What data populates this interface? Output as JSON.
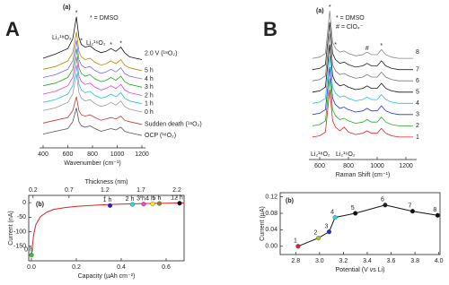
{
  "panel_labels": [
    "A",
    "B"
  ],
  "chart_data": [
    {
      "type": "spectra",
      "xlabel": "Wavenumber (cm⁻¹)",
      "xlim": [
        400,
        1200
      ],
      "ylim": [
        0,
        10.2
      ],
      "xticks": [
        400,
        600,
        800,
        1000,
        1200
      ],
      "x": [
        400,
        500,
        600,
        640,
        670,
        690,
        710,
        740,
        780,
        820,
        870,
        910,
        950,
        990,
        1030,
        1060,
        1100,
        1150,
        1200
      ],
      "annotations": [
        {
          "text": "(a)"
        },
        {
          "text": "* = DMSO"
        },
        {
          "text": "Li₂¹⁸O₂"
        },
        {
          "text": "Li₂¹⁶O₂"
        }
      ],
      "peak_markers": [
        {
          "text": "*",
          "x": 670
        },
        {
          "text": "*",
          "x": 710
        },
        {
          "text": "*",
          "x": 950
        },
        {
          "text": "*",
          "x": 1030
        }
      ],
      "series": [
        {
          "name": "2.0 V (¹⁸O₂)",
          "color": "#111111",
          "values": [
            6.5,
            6.8,
            7.2,
            7.9,
            9.5,
            8.0,
            7.5,
            7.3,
            7.4,
            7.1,
            6.9,
            7.0,
            7.2,
            7.0,
            7.3,
            6.9,
            6.6,
            6.5,
            6.4
          ]
        },
        {
          "name": "5 h",
          "color": "#b8860b",
          "values": [
            5.7,
            5.9,
            6.3,
            6.9,
            8.4,
            7.0,
            6.6,
            6.4,
            6.5,
            6.2,
            6.0,
            6.1,
            6.3,
            6.1,
            6.4,
            6.0,
            5.8,
            5.7,
            5.6
          ]
        },
        {
          "name": "4 h",
          "color": "#7b68ee",
          "values": [
            5.1,
            5.3,
            5.7,
            6.3,
            7.8,
            6.4,
            6.0,
            5.8,
            5.9,
            5.6,
            5.4,
            5.5,
            5.7,
            5.5,
            5.8,
            5.4,
            5.2,
            5.1,
            5.0
          ]
        },
        {
          "name": "3 h",
          "color": "#22aa22",
          "values": [
            4.5,
            4.7,
            5.1,
            5.7,
            7.2,
            5.8,
            5.4,
            5.2,
            5.3,
            5.0,
            4.8,
            4.9,
            5.1,
            4.9,
            5.2,
            4.8,
            4.6,
            4.5,
            4.4
          ]
        },
        {
          "name": "2 h",
          "color": "#e040e0",
          "values": [
            3.9,
            4.1,
            4.5,
            5.1,
            6.6,
            5.2,
            4.8,
            4.6,
            4.7,
            4.4,
            4.2,
            4.3,
            4.5,
            4.3,
            4.6,
            4.2,
            4.0,
            3.9,
            3.8
          ]
        },
        {
          "name": "1 h",
          "color": "#20c0e0",
          "values": [
            3.3,
            3.5,
            3.9,
            4.5,
            6.0,
            4.6,
            4.2,
            4.0,
            4.1,
            3.8,
            3.6,
            3.7,
            3.9,
            3.7,
            4.0,
            3.6,
            3.4,
            3.3,
            3.2
          ]
        },
        {
          "name": "0 h",
          "color": "#999999",
          "values": [
            2.7,
            2.9,
            3.3,
            3.9,
            5.4,
            4.0,
            3.6,
            3.4,
            3.5,
            3.2,
            3.0,
            3.1,
            3.3,
            3.1,
            3.4,
            3.0,
            2.8,
            2.7,
            2.6
          ]
        },
        {
          "name": "Sudden death (¹⁸O₂)",
          "color": "#cc3333",
          "values": [
            1.8,
            2.0,
            2.2,
            2.7,
            3.7,
            2.7,
            2.4,
            2.3,
            2.4,
            2.2,
            2.0,
            2.1,
            2.2,
            2.1,
            2.3,
            2.0,
            1.9,
            1.8,
            1.7
          ]
        },
        {
          "name": "OCP (¹⁸O₂)",
          "color": "#555555",
          "values": [
            1.0,
            1.2,
            1.4,
            1.9,
            2.9,
            1.9,
            1.6,
            1.5,
            1.6,
            1.4,
            1.2,
            1.3,
            1.4,
            1.3,
            1.5,
            1.2,
            1.1,
            1.0,
            0.9
          ]
        }
      ]
    },
    {
      "type": "scatter",
      "xlabel": "Capacity (µAh cm⁻²)",
      "ylabel": "Current (nA)",
      "x2label": "Thickness (nm)",
      "xlim": [
        -0.012,
        0.68
      ],
      "ylim": [
        -200,
        25
      ],
      "x2lim": [
        0.14,
        2.3
      ],
      "xticks": [
        {
          "value": 0,
          "label": "0.0"
        },
        0.2,
        0.4,
        0.6
      ],
      "yticks": [
        -150,
        -100,
        -50,
        0
      ],
      "x2ticks": [
        0.2,
        0.7,
        1.2,
        1.7,
        2.2
      ],
      "annotations": [
        {
          "text": "(b)"
        }
      ],
      "curve": {
        "color": "#dd2222",
        "x": [
          0,
          0.01,
          0.02,
          0.04,
          0.07,
          0.1,
          0.15,
          0.2,
          0.3,
          0.4,
          0.5,
          0.6,
          0.68
        ],
        "values": [
          -180,
          -110,
          -75,
          -48,
          -32,
          -23,
          -17,
          -13,
          -8,
          -5,
          -3,
          -2,
          -1
        ]
      },
      "points": {
        "labels": [
          "0 h",
          "1 h",
          "2 h",
          "3 h",
          "4 h",
          "5 h",
          "12 h"
        ],
        "x": [
          0,
          0.35,
          0.45,
          0.5,
          0.54,
          0.57,
          0.66
        ],
        "values": [
          -180,
          -10,
          -6,
          -5,
          -4,
          -3,
          -2
        ],
        "colors": [
          "#22cc22",
          "#2222cc",
          "#22dddd",
          "#ee44cc",
          "#eeee22",
          "#888822",
          "#111111"
        ]
      }
    },
    {
      "type": "spectra",
      "xlabel": "Raman Shift (cm⁻¹)",
      "xlim": [
        550,
        1250
      ],
      "ylim": [
        -1,
        11.2
      ],
      "xticks": [
        600,
        800,
        1000,
        1200
      ],
      "x": [
        550,
        600,
        640,
        670,
        690,
        710,
        740,
        770,
        800,
        850,
        900,
        930,
        960,
        1000,
        1030,
        1060,
        1100,
        1150,
        1200,
        1250
      ],
      "annotations": [
        {
          "text": "(a)"
        },
        {
          "text": "* = DMSO"
        },
        {
          "text": "# = ClO₄⁻"
        },
        {
          "text": "Li₂¹⁸O₂"
        },
        {
          "text": "Li₂¹⁶O₂"
        }
      ],
      "peak_markers": [
        {
          "text": "*",
          "x": 670
        },
        {
          "text": "*",
          "x": 710
        },
        {
          "text": "#",
          "x": 930
        },
        {
          "text": "*",
          "x": 1030
        }
      ],
      "series": [
        {
          "name": "8",
          "color": "#888888",
          "values": [
            7.1,
            7.2,
            7.5,
            10.9,
            8.4,
            7.9,
            7.6,
            7.7,
            7.5,
            7.3,
            7.4,
            7.6,
            7.4,
            7.4,
            7.8,
            7.4,
            7.2,
            7.1,
            7.1,
            7.1
          ]
        },
        {
          "name": "7",
          "color": "#222222",
          "values": [
            6.2,
            6.3,
            6.6,
            10.0,
            7.5,
            7.0,
            6.7,
            6.8,
            6.6,
            6.4,
            6.5,
            6.7,
            6.5,
            6.5,
            6.9,
            6.5,
            6.3,
            6.2,
            6.2,
            6.2
          ]
        },
        {
          "name": "6",
          "color": "#777777",
          "values": [
            5.3,
            5.4,
            5.7,
            9.1,
            6.6,
            6.1,
            5.8,
            5.9,
            5.7,
            5.5,
            5.6,
            5.8,
            5.6,
            5.6,
            6.0,
            5.6,
            5.4,
            5.3,
            5.3,
            5.3
          ]
        },
        {
          "name": "5",
          "color": "#111111",
          "values": [
            4.4,
            4.5,
            4.8,
            8.2,
            5.7,
            5.2,
            4.9,
            5.0,
            4.8,
            4.6,
            4.7,
            4.9,
            4.7,
            4.7,
            5.1,
            4.7,
            4.5,
            4.4,
            4.4,
            4.4
          ]
        },
        {
          "name": "4",
          "color": "#20c0e0",
          "values": [
            3.5,
            3.6,
            3.9,
            7.3,
            4.8,
            4.3,
            4.0,
            4.1,
            3.9,
            3.7,
            3.8,
            4.0,
            3.8,
            3.8,
            4.2,
            3.8,
            3.6,
            3.5,
            3.5,
            3.5
          ]
        },
        {
          "name": "3",
          "color": "#2233cc",
          "values": [
            2.6,
            2.7,
            3.0,
            6.4,
            3.9,
            3.4,
            3.1,
            3.2,
            3.0,
            2.8,
            2.9,
            3.1,
            2.9,
            2.9,
            3.3,
            2.9,
            2.7,
            2.6,
            2.6,
            2.6
          ]
        },
        {
          "name": "2",
          "color": "#22aa22",
          "values": [
            1.7,
            1.8,
            2.1,
            5.5,
            3.0,
            2.5,
            2.2,
            2.3,
            2.1,
            1.9,
            2.0,
            2.2,
            2.0,
            2.0,
            2.4,
            2.0,
            1.8,
            1.7,
            1.7,
            1.7
          ]
        },
        {
          "name": "1",
          "color": "#dd2222",
          "values": [
            0.8,
            0.9,
            1.2,
            4.6,
            2.1,
            1.6,
            1.3,
            1.6,
            1.2,
            1.0,
            1.1,
            1.3,
            1.1,
            1.1,
            1.5,
            1.1,
            0.9,
            0.8,
            0.8,
            0.8
          ]
        }
      ]
    },
    {
      "type": "scatter",
      "xlabel": "Potential (V vs Li)",
      "ylabel": "Current (µA)",
      "xlim": [
        2.67,
        4.01
      ],
      "ylim": [
        -0.02,
        0.13
      ],
      "xticks": [
        2.8,
        {
          "value": 3,
          "label": "3.0"
        },
        3.2,
        3.4,
        3.6,
        3.8,
        {
          "value": 4,
          "label": "4.0"
        }
      ],
      "yticks": [
        {
          "value": 0,
          "label": "0.00"
        },
        0.04,
        0.08,
        0.12
      ],
      "annotations": [
        {
          "text": "(b)"
        }
      ],
      "curve": {
        "color": "#111111",
        "x": [
          2.82,
          2.99,
          3.08,
          3.13,
          3.3,
          3.55,
          3.78,
          3.99
        ],
        "values": [
          0,
          0.02,
          0.035,
          0.07,
          0.08,
          0.1,
          0.085,
          0.075
        ]
      },
      "points": {
        "labels": [
          "1",
          "2",
          "3",
          "4",
          "5",
          "6",
          "7",
          "8"
        ],
        "x": [
          2.82,
          2.99,
          3.08,
          3.13,
          3.3,
          3.55,
          3.78,
          3.99
        ],
        "values": [
          0,
          0.02,
          0.035,
          0.07,
          0.08,
          0.1,
          0.085,
          0.075
        ],
        "colors": [
          "#dd2222",
          "#99cc22",
          "#2233cc",
          "#22dddd",
          "#111111",
          "#222222",
          "#111111",
          "#111111"
        ]
      }
    }
  ]
}
